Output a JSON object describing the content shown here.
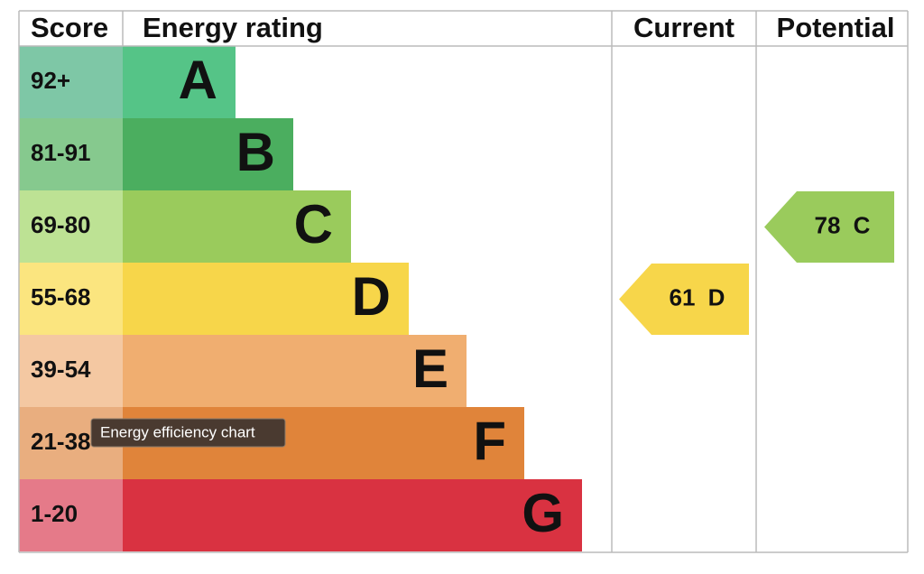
{
  "header": {
    "score": "Score",
    "rating": "Energy rating",
    "current": "Current",
    "potential": "Potential"
  },
  "bands": [
    {
      "score": "92+",
      "letter": "A",
      "color": "#55c487",
      "light": "#7ec7a6"
    },
    {
      "score": "81-91",
      "letter": "B",
      "color": "#4bae5f",
      "light": "#86c98e"
    },
    {
      "score": "69-80",
      "letter": "C",
      "color": "#9acb5c",
      "light": "#bde294"
    },
    {
      "score": "55-68",
      "letter": "D",
      "color": "#f7d64a",
      "light": "#fbe57f"
    },
    {
      "score": "39-54",
      "letter": "E",
      "color": "#f0ae70",
      "light": "#f4c8a2"
    },
    {
      "score": "21-38",
      "letter": "F",
      "color": "#e0843a",
      "light": "#e9ae7f"
    },
    {
      "score": "1-20",
      "letter": "G",
      "color": "#d93241",
      "light": "#e57a89"
    }
  ],
  "current": {
    "value": 61,
    "letter": "D"
  },
  "potential": {
    "value": 78,
    "letter": "C"
  },
  "tooltip": "Energy efficiency chart"
}
